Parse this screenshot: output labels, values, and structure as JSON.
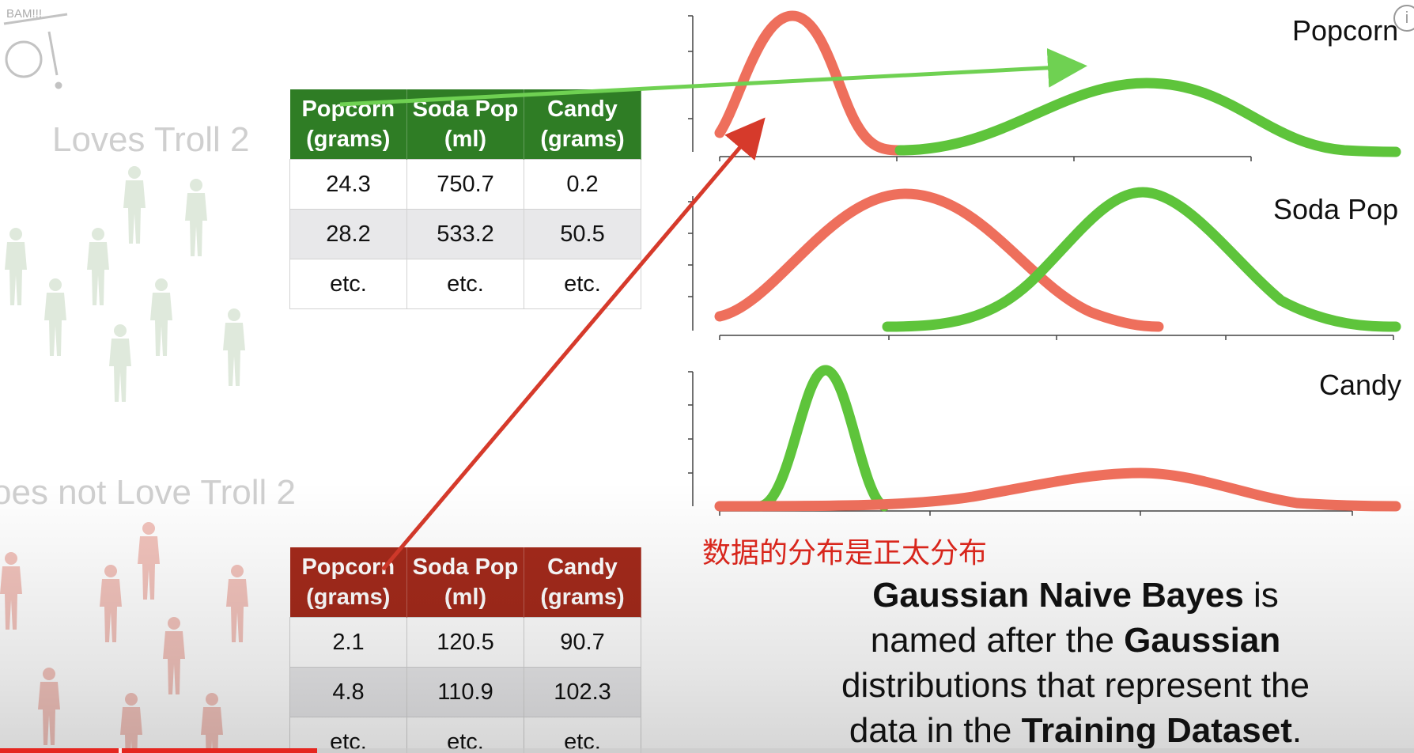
{
  "logo": {
    "text": "BAM!!!"
  },
  "groups": {
    "loves": {
      "label": "Loves Troll 2"
    },
    "not_loves": {
      "label": "oes not Love Troll 2"
    }
  },
  "tables": {
    "loves": {
      "headers": [
        "Popcorn (grams)",
        "Soda Pop (ml)",
        "Candy (grams)"
      ],
      "header_color": "#2f7d25",
      "rows": [
        [
          "24.3",
          "750.7",
          "0.2"
        ],
        [
          "28.2",
          "533.2",
          "50.5"
        ],
        [
          "etc.",
          "etc.",
          "etc."
        ]
      ]
    },
    "not_loves": {
      "headers": [
        "Popcorn (grams)",
        "Soda Pop (ml)",
        "Candy (grams)"
      ],
      "header_color": "#a42a1b",
      "rows": [
        [
          "2.1",
          "120.5",
          "90.7"
        ],
        [
          "4.8",
          "110.9",
          "102.3"
        ],
        [
          "etc.",
          "etc.",
          "etc."
        ]
      ]
    }
  },
  "plots": {
    "popcorn": {
      "title": "Popcorn"
    },
    "soda": {
      "title": "Soda Pop"
    },
    "candy": {
      "title": "Candy"
    }
  },
  "annotation": "数据的分布是正太分布",
  "explanation": {
    "p1_bold": "Gaussian Naive Bayes",
    "p1_rest": " is",
    "p2_pre": "named after the ",
    "p2_bold": "Gaussian",
    "p3": "distributions that represent the",
    "p4_pre": "data in the ",
    "p4_bold": "Training Dataset",
    "p4_end": "."
  },
  "colors": {
    "loves_curve": "#5ec43b",
    "not_loves_curve": "#ee6f5c",
    "loves_header": "#2f7d25",
    "not_loves_header": "#a42a1b",
    "annotation": "#e0271d",
    "progress": "#e5261f"
  },
  "progress": {
    "watched_fraction": 0.224
  }
}
